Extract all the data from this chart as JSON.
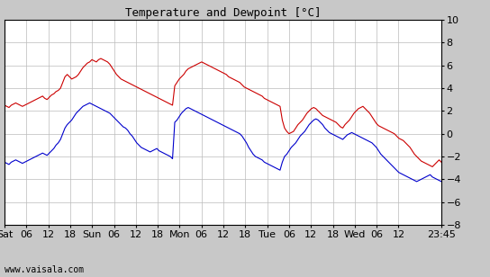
{
  "title": "Temperature and Dewpoint [°C]",
  "ylim": [
    -8,
    10
  ],
  "yticks": [
    -8,
    -6,
    -4,
    -2,
    0,
    2,
    4,
    6,
    8,
    10
  ],
  "watermark": "www.vaisala.com",
  "temp_color": "#cc0000",
  "dewp_color": "#0000cc",
  "line_width": 0.8,
  "bg_color": "#c8c8c8",
  "plot_bg": "#ffffff",
  "grid_color": "#bbbbbb",
  "x_tick_labels": [
    "Sat",
    "06",
    "12",
    "18",
    "Sun",
    "06",
    "12",
    "18",
    "Mon",
    "06",
    "12",
    "18",
    "Tue",
    "06",
    "12",
    "18",
    "Wed",
    "06",
    "12",
    "23:45"
  ],
  "x_tick_positions": [
    0,
    6,
    12,
    18,
    24,
    30,
    36,
    42,
    48,
    54,
    60,
    66,
    72,
    78,
    84,
    90,
    96,
    102,
    108,
    119.75
  ],
  "x_total_hours": 119.75,
  "temp_data": [
    2.5,
    2.4,
    2.3,
    2.5,
    2.6,
    2.7,
    2.6,
    2.5,
    2.4,
    2.5,
    2.6,
    2.7,
    2.8,
    2.9,
    3.0,
    3.1,
    3.2,
    3.3,
    3.1,
    3.0,
    3.2,
    3.4,
    3.5,
    3.7,
    3.8,
    4.0,
    4.5,
    5.0,
    5.2,
    5.0,
    4.8,
    4.9,
    5.0,
    5.2,
    5.5,
    5.8,
    6.0,
    6.2,
    6.3,
    6.5,
    6.4,
    6.3,
    6.5,
    6.6,
    6.5,
    6.4,
    6.3,
    6.1,
    5.8,
    5.5,
    5.2,
    5.0,
    4.8,
    4.7,
    4.6,
    4.5,
    4.4,
    4.3,
    4.2,
    4.1,
    4.0,
    3.9,
    3.8,
    3.7,
    3.6,
    3.5,
    3.4,
    3.3,
    3.2,
    3.1,
    3.0,
    2.9,
    2.8,
    2.7,
    2.6,
    2.5,
    4.2,
    4.5,
    4.8,
    5.0,
    5.2,
    5.5,
    5.7,
    5.8,
    5.9,
    6.0,
    6.1,
    6.2,
    6.3,
    6.2,
    6.1,
    6.0,
    5.9,
    5.8,
    5.7,
    5.6,
    5.5,
    5.4,
    5.3,
    5.2,
    5.0,
    4.9,
    4.8,
    4.7,
    4.6,
    4.5,
    4.3,
    4.1,
    4.0,
    3.9,
    3.8,
    3.7,
    3.6,
    3.5,
    3.4,
    3.3,
    3.1,
    3.0,
    2.9,
    2.8,
    2.7,
    2.6,
    2.5,
    2.4,
    1.2,
    0.5,
    0.2,
    0.0,
    0.1,
    0.2,
    0.5,
    0.8,
    1.0,
    1.2,
    1.5,
    1.8,
    2.0,
    2.2,
    2.3,
    2.2,
    2.0,
    1.8,
    1.6,
    1.5,
    1.4,
    1.3,
    1.2,
    1.1,
    1.0,
    0.8,
    0.6,
    0.5,
    0.8,
    1.0,
    1.2,
    1.5,
    1.8,
    2.0,
    2.2,
    2.3,
    2.4,
    2.2,
    2.0,
    1.8,
    1.5,
    1.2,
    0.9,
    0.7,
    0.6,
    0.5,
    0.4,
    0.3,
    0.2,
    0.1,
    0.0,
    -0.2,
    -0.4,
    -0.5,
    -0.6,
    -0.8,
    -1.0,
    -1.2,
    -1.5,
    -1.8,
    -2.0,
    -2.2,
    -2.4,
    -2.5,
    -2.6,
    -2.7,
    -2.8,
    -2.9,
    -2.7,
    -2.5,
    -2.3,
    -2.5
  ],
  "dewp_data": [
    -2.5,
    -2.6,
    -2.7,
    -2.5,
    -2.4,
    -2.3,
    -2.4,
    -2.5,
    -2.6,
    -2.5,
    -2.4,
    -2.3,
    -2.2,
    -2.1,
    -2.0,
    -1.9,
    -1.8,
    -1.7,
    -1.8,
    -1.9,
    -1.7,
    -1.5,
    -1.3,
    -1.0,
    -0.8,
    -0.5,
    0.0,
    0.5,
    0.8,
    1.0,
    1.2,
    1.5,
    1.8,
    2.0,
    2.2,
    2.4,
    2.5,
    2.6,
    2.7,
    2.6,
    2.5,
    2.4,
    2.3,
    2.2,
    2.1,
    2.0,
    1.9,
    1.8,
    1.6,
    1.4,
    1.2,
    1.0,
    0.8,
    0.6,
    0.5,
    0.3,
    0.0,
    -0.2,
    -0.5,
    -0.8,
    -1.0,
    -1.2,
    -1.3,
    -1.4,
    -1.5,
    -1.6,
    -1.5,
    -1.4,
    -1.3,
    -1.5,
    -1.6,
    -1.7,
    -1.8,
    -1.9,
    -2.0,
    -2.2,
    1.0,
    1.2,
    1.5,
    1.8,
    2.0,
    2.2,
    2.3,
    2.2,
    2.1,
    2.0,
    1.9,
    1.8,
    1.7,
    1.6,
    1.5,
    1.4,
    1.3,
    1.2,
    1.1,
    1.0,
    0.9,
    0.8,
    0.7,
    0.6,
    0.5,
    0.4,
    0.3,
    0.2,
    0.1,
    0.0,
    -0.2,
    -0.5,
    -0.8,
    -1.2,
    -1.5,
    -1.8,
    -2.0,
    -2.1,
    -2.2,
    -2.3,
    -2.5,
    -2.6,
    -2.7,
    -2.8,
    -2.9,
    -3.0,
    -3.1,
    -3.2,
    -2.5,
    -2.0,
    -1.8,
    -1.5,
    -1.2,
    -1.0,
    -0.8,
    -0.5,
    -0.2,
    0.0,
    0.2,
    0.5,
    0.8,
    1.0,
    1.2,
    1.3,
    1.2,
    1.0,
    0.8,
    0.5,
    0.3,
    0.1,
    0.0,
    -0.1,
    -0.2,
    -0.3,
    -0.4,
    -0.5,
    -0.3,
    -0.1,
    0.0,
    0.1,
    0.0,
    -0.1,
    -0.2,
    -0.3,
    -0.4,
    -0.5,
    -0.6,
    -0.7,
    -0.8,
    -1.0,
    -1.2,
    -1.5,
    -1.8,
    -2.0,
    -2.2,
    -2.4,
    -2.6,
    -2.8,
    -3.0,
    -3.2,
    -3.4,
    -3.5,
    -3.6,
    -3.7,
    -3.8,
    -3.9,
    -4.0,
    -4.1,
    -4.2,
    -4.1,
    -4.0,
    -3.9,
    -3.8,
    -3.7,
    -3.6,
    -3.8,
    -3.9,
    -4.0,
    -4.1,
    -4.2
  ]
}
